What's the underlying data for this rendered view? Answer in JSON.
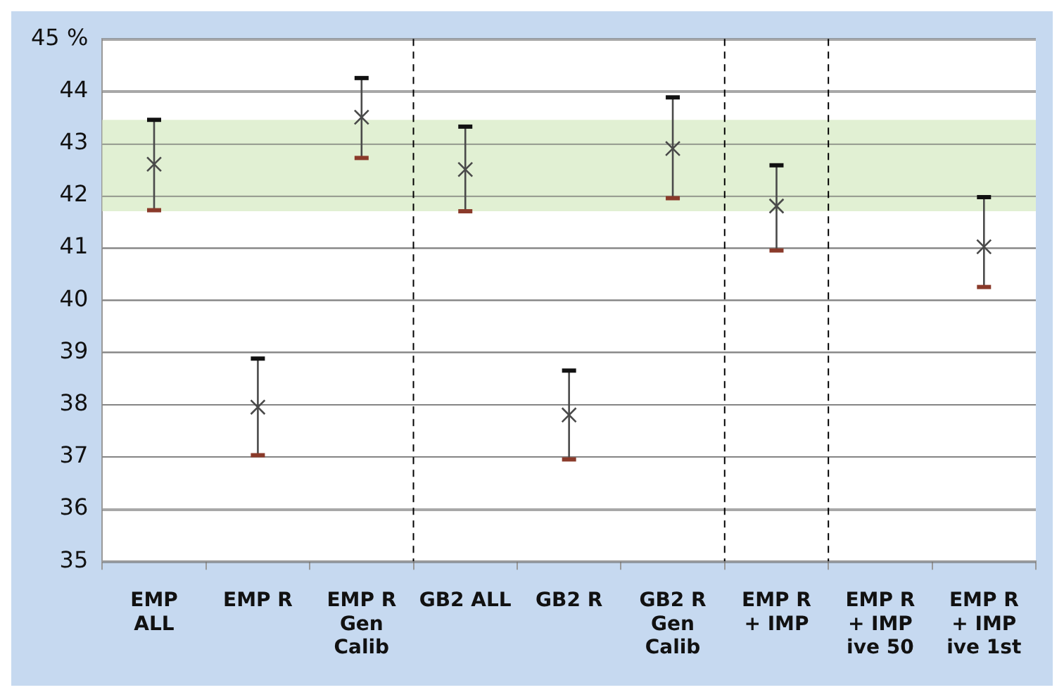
{
  "chart_data": {
    "type": "scatter",
    "categories": [
      "EMP\nALL",
      "EMP R",
      "EMP R\nGen\nCalib",
      "GB2 ALL",
      "GB2 R",
      "GB2 R\nGen\nCalib",
      "EMP R\n+ IMP",
      "EMP R\n+ IMP\nive 50",
      "EMP R\n+ IMP\nive 1st"
    ],
    "series": [
      {
        "color": "#4a4a4a",
        "values": [
          42.6,
          37.95,
          43.5,
          42.5,
          37.8,
          42.9,
          41.8,
          null,
          41.02
        ],
        "errors": [
          [
            41.72,
            43.45
          ],
          [
            37.03,
            38.88
          ],
          [
            42.72,
            44.25
          ],
          [
            41.7,
            43.32
          ],
          [
            36.95,
            38.65
          ],
          [
            41.95,
            43.88
          ],
          [
            40.95,
            42.58
          ],
          null,
          [
            40.25,
            41.97
          ]
        ]
      }
    ],
    "marker": "cross",
    "ylim": [
      35,
      45
    ],
    "yticks": [
      35,
      36,
      37,
      38,
      39,
      40,
      41,
      42,
      43,
      44,
      {
        "value": 45,
        "label": "45 %"
      }
    ],
    "grid": "y",
    "bands": [
      {
        "axis": "y",
        "from": 41.7,
        "to": 43.45,
        "color": "#dcedcb"
      }
    ]
  }
}
